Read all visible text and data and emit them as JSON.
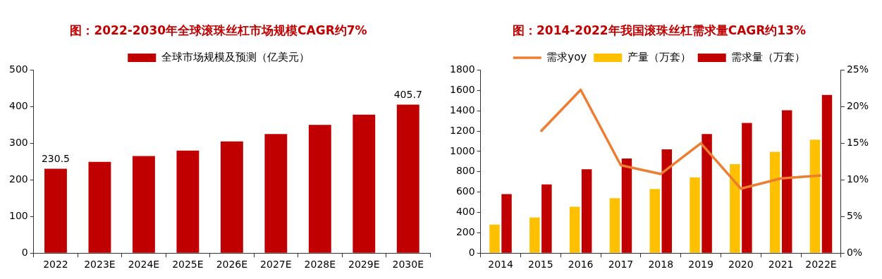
{
  "chart_data": [
    {
      "type": "bar",
      "title": "图：2022-2030年全球滚珠丝杠市场规模CAGR约7%",
      "categories": [
        "2022",
        "2023E",
        "2024E",
        "2025E",
        "2026E",
        "2027E",
        "2028E",
        "2029E",
        "2030E"
      ],
      "series": [
        {
          "name": "全球市场规模及预测（亿美元）",
          "color": "#c00000",
          "values": [
            230.5,
            249,
            265,
            280,
            305,
            325,
            350,
            378,
            405.7
          ],
          "value_labels": [
            "230.5",
            null,
            null,
            null,
            null,
            null,
            null,
            null,
            "405.7"
          ]
        }
      ],
      "ylim": [
        0,
        500
      ],
      "yticks": [
        0,
        100,
        200,
        300,
        400,
        500
      ],
      "grid": false,
      "legend": "top"
    },
    {
      "type": "bar",
      "title": "图：2014-2022年我国滚珠丝杠需求量CAGR约13%",
      "categories": [
        "2014",
        "2015",
        "2016",
        "2017",
        "2018",
        "2019",
        "2020",
        "2021",
        "2022E"
      ],
      "series": [
        {
          "name": "产量（万套）",
          "color": "#ffc000",
          "values": [
            280,
            350,
            455,
            540,
            630,
            745,
            875,
            995,
            1115
          ]
        },
        {
          "name": "需求量（万套）",
          "color": "#c00000",
          "values": [
            580,
            675,
            825,
            930,
            1020,
            1170,
            1280,
            1405,
            1555
          ]
        },
        {
          "name": "需求yoy",
          "type": "line",
          "axis": "y2",
          "color": "#ed7d31",
          "values": [
            null,
            16.6,
            22.3,
            12.0,
            10.8,
            15.0,
            8.8,
            10.2,
            10.6
          ]
        }
      ],
      "ylim": [
        0,
        1800
      ],
      "yticks": [
        0,
        200,
        400,
        600,
        800,
        1000,
        1200,
        1400,
        1600,
        1800
      ],
      "y2lim": [
        0,
        25
      ],
      "y2ticks": [
        {
          "value": 0,
          "label": "0%"
        },
        {
          "value": 5,
          "label": "5%"
        },
        {
          "value": 10,
          "label": "10%"
        },
        {
          "value": 15,
          "label": "15%"
        },
        {
          "value": 20,
          "label": "20%"
        },
        {
          "value": 25,
          "label": "25%"
        }
      ],
      "grid": false,
      "legend": "top",
      "marker": "none",
      "line_style": "solid"
    }
  ]
}
